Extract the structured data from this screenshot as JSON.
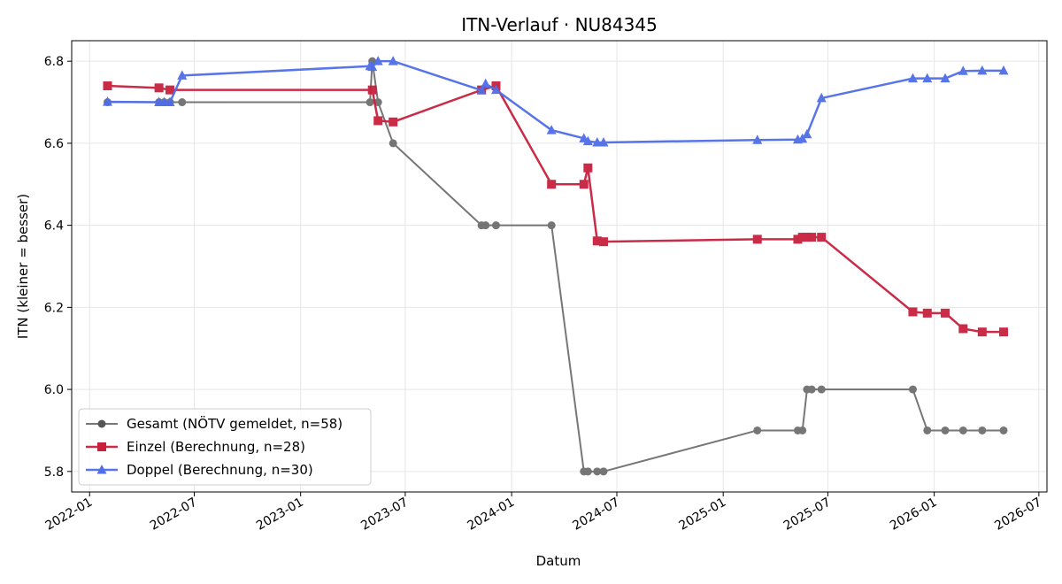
{
  "chart_data": {
    "type": "line",
    "title": "ITN-Verlauf · NU84345",
    "xlabel": "Datum",
    "ylabel": "ITN  (kleiner = besser)",
    "xlim": [
      "2021-12-01",
      "2026-07-15"
    ],
    "ylim": [
      5.75,
      6.85
    ],
    "x_ticks": [
      "2022-01",
      "2022-07",
      "2023-01",
      "2023-07",
      "2024-01",
      "2024-07",
      "2025-01",
      "2025-07",
      "2026-01",
      "2026-07"
    ],
    "y_ticks": [
      "5.8",
      "6.0",
      "6.2",
      "6.4",
      "6.6",
      "6.8"
    ],
    "grid": true,
    "legend_position": "lower-left",
    "series": [
      {
        "name": "Gesamt (NÖTV gemeldet, n=58)",
        "color": "#555555",
        "marker": "circle",
        "points": [
          [
            "2022-02-01",
            6.7
          ],
          [
            "2022-05-01",
            6.7
          ],
          [
            "2022-05-10",
            6.7
          ],
          [
            "2022-05-20",
            6.7
          ],
          [
            "2022-06-10",
            6.7
          ],
          [
            "2023-05-01",
            6.7
          ],
          [
            "2023-05-05",
            6.8
          ],
          [
            "2023-05-15",
            6.7
          ],
          [
            "2023-06-10",
            6.6
          ],
          [
            "2023-11-10",
            6.4
          ],
          [
            "2023-11-17",
            6.4
          ],
          [
            "2023-12-05",
            6.4
          ],
          [
            "2024-03-10",
            6.4
          ],
          [
            "2024-05-05",
            5.8
          ],
          [
            "2024-05-12",
            5.8
          ],
          [
            "2024-05-28",
            5.8
          ],
          [
            "2024-06-08",
            5.8
          ],
          [
            "2025-03-01",
            5.9
          ],
          [
            "2025-05-10",
            5.9
          ],
          [
            "2025-05-18",
            5.9
          ],
          [
            "2025-05-26",
            6.0
          ],
          [
            "2025-06-03",
            6.0
          ],
          [
            "2025-06-20",
            6.0
          ],
          [
            "2025-11-25",
            6.0
          ],
          [
            "2025-12-20",
            5.9
          ],
          [
            "2026-01-20",
            5.9
          ],
          [
            "2026-02-20",
            5.9
          ],
          [
            "2026-03-25",
            5.9
          ],
          [
            "2026-05-01",
            5.9
          ]
        ]
      },
      {
        "name": "Einzel (Berechnung, n=28)",
        "color": "#c8203d",
        "marker": "square",
        "points": [
          [
            "2022-02-01",
            6.74
          ],
          [
            "2022-05-01",
            6.735
          ],
          [
            "2022-05-20",
            6.73
          ],
          [
            "2023-05-05",
            6.73
          ],
          [
            "2023-05-15",
            6.655
          ],
          [
            "2023-06-10",
            6.652
          ],
          [
            "2023-11-10",
            6.73
          ],
          [
            "2023-12-05",
            6.74
          ],
          [
            "2024-03-10",
            6.5
          ],
          [
            "2024-05-05",
            6.5
          ],
          [
            "2024-05-12",
            6.54
          ],
          [
            "2024-05-28",
            6.362
          ],
          [
            "2024-06-08",
            6.36
          ],
          [
            "2025-03-01",
            6.366
          ],
          [
            "2025-05-10",
            6.366
          ],
          [
            "2025-05-18",
            6.371
          ],
          [
            "2025-05-26",
            6.371
          ],
          [
            "2025-06-03",
            6.371
          ],
          [
            "2025-06-20",
            6.371
          ],
          [
            "2025-11-25",
            6.189
          ],
          [
            "2025-12-20",
            6.186
          ],
          [
            "2026-01-20",
            6.186
          ],
          [
            "2026-02-20",
            6.148
          ],
          [
            "2026-03-25",
            6.14
          ],
          [
            "2026-05-01",
            6.14
          ]
        ]
      },
      {
        "name": "Doppel (Berechnung, n=30)",
        "color": "#4f6ee8",
        "marker": "triangle",
        "points": [
          [
            "2022-02-01",
            6.701
          ],
          [
            "2022-05-01",
            6.7
          ],
          [
            "2022-05-10",
            6.7
          ],
          [
            "2022-05-20",
            6.7
          ],
          [
            "2022-06-10",
            6.765
          ],
          [
            "2023-05-01",
            6.788
          ],
          [
            "2023-05-05",
            6.786
          ],
          [
            "2023-05-15",
            6.8
          ],
          [
            "2023-06-10",
            6.8
          ],
          [
            "2023-11-10",
            6.729
          ],
          [
            "2023-11-17",
            6.745
          ],
          [
            "2023-12-05",
            6.73
          ],
          [
            "2024-03-10",
            6.632
          ],
          [
            "2024-05-05",
            6.612
          ],
          [
            "2024-05-12",
            6.605
          ],
          [
            "2024-05-28",
            6.602
          ],
          [
            "2024-06-08",
            6.602
          ],
          [
            "2025-03-01",
            6.608
          ],
          [
            "2025-05-10",
            6.609
          ],
          [
            "2025-05-18",
            6.611
          ],
          [
            "2025-05-26",
            6.622
          ],
          [
            "2025-06-20",
            6.71
          ],
          [
            "2025-11-25",
            6.758
          ],
          [
            "2025-12-20",
            6.758
          ],
          [
            "2026-01-20",
            6.758
          ],
          [
            "2026-02-20",
            6.776
          ],
          [
            "2026-03-25",
            6.777
          ],
          [
            "2026-05-01",
            6.777
          ]
        ]
      }
    ]
  }
}
